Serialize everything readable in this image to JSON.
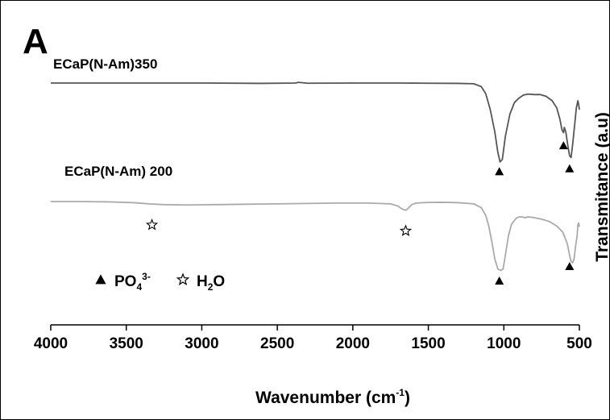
{
  "panel_label": "A",
  "chart_data": {
    "type": "line",
    "xlabel": "Wavenumber (cm",
    "xlabel_sup": "-1",
    "xlabel_suffix": ")",
    "ylabel": "Transmitance (a.u)",
    "xlim": [
      4000,
      500
    ],
    "x_reversed": true,
    "xticks": [
      4000,
      3500,
      3000,
      2500,
      2000,
      1500,
      1000,
      500
    ],
    "xtick_labels": [
      "4000",
      "3500",
      "3000",
      "2500",
      "2000",
      "1500",
      "1000",
      "500"
    ],
    "grid": false,
    "legend_position": "bottom-left",
    "colors": {
      "series_350": "#555555",
      "series_200": "#aaaaaa",
      "markers": "#000000"
    },
    "series": [
      {
        "name": "ECaP(N-Am)350",
        "x": [
          4000,
          3500,
          3000,
          2600,
          2380,
          2360,
          2300,
          2000,
          1700,
          1500,
          1300,
          1200,
          1150,
          1120,
          1090,
          1060,
          1040,
          1025,
          1010,
          990,
          960,
          930,
          900,
          870,
          840,
          800,
          760,
          720,
          680,
          650,
          630,
          615,
          605,
          600,
          590,
          575,
          565,
          555,
          545,
          530,
          520,
          510,
          505,
          500
        ],
        "y": [
          0.0,
          0.0,
          0.0,
          0.004,
          0.0,
          -0.008,
          0.002,
          0.0,
          0.0,
          0.002,
          0.004,
          0.008,
          0.04,
          0.12,
          0.3,
          0.55,
          0.78,
          0.89,
          0.86,
          0.6,
          0.35,
          0.22,
          0.17,
          0.135,
          0.125,
          0.13,
          0.13,
          0.15,
          0.2,
          0.28,
          0.4,
          0.53,
          0.56,
          0.5,
          0.55,
          0.72,
          0.82,
          0.84,
          0.7,
          0.45,
          0.28,
          0.2,
          0.24,
          0.3
        ]
      },
      {
        "name": "ECaP(N-Am) 200",
        "x": [
          4000,
          3800,
          3600,
          3450,
          3350,
          3250,
          3100,
          2900,
          2700,
          2500,
          2300,
          2100,
          1900,
          1750,
          1700,
          1680,
          1660,
          1645,
          1630,
          1610,
          1580,
          1500,
          1400,
          1300,
          1200,
          1150,
          1120,
          1100,
          1080,
          1060,
          1040,
          1020,
          1005,
          990,
          970,
          950,
          920,
          900,
          880,
          860,
          840,
          800,
          750,
          700,
          650,
          610,
          580,
          565,
          555,
          545,
          535,
          525,
          515,
          510,
          505,
          500
        ],
        "y": [
          0.0,
          0.0,
          0.005,
          0.015,
          0.03,
          0.04,
          0.045,
          0.04,
          0.035,
          0.03,
          0.025,
          0.02,
          0.02,
          0.03,
          0.06,
          0.09,
          0.11,
          0.11,
          0.08,
          0.04,
          0.02,
          0.012,
          0.01,
          0.015,
          0.03,
          0.08,
          0.18,
          0.32,
          0.52,
          0.75,
          0.88,
          0.9,
          0.88,
          0.7,
          0.45,
          0.3,
          0.22,
          0.2,
          0.2,
          0.21,
          0.2,
          0.21,
          0.23,
          0.26,
          0.32,
          0.4,
          0.55,
          0.7,
          0.78,
          0.8,
          0.75,
          0.58,
          0.45,
          0.3,
          0.28,
          0.33
        ]
      }
    ],
    "markers": [
      {
        "series": "ECaP(N-Am)350",
        "type": "triangle",
        "x": 1030
      },
      {
        "series": "ECaP(N-Am)350",
        "type": "triangle",
        "x": 605
      },
      {
        "series": "ECaP(N-Am)350",
        "type": "triangle",
        "x": 565
      },
      {
        "series": "ECaP(N-Am) 200",
        "type": "star",
        "x": 3330
      },
      {
        "series": "ECaP(N-Am) 200",
        "type": "star",
        "x": 1650
      },
      {
        "series": "ECaP(N-Am) 200",
        "type": "triangle",
        "x": 1030
      },
      {
        "series": "ECaP(N-Am) 200",
        "type": "triangle",
        "x": 565
      }
    ],
    "legend": [
      {
        "marker": "triangle",
        "label": "PO",
        "sub": "4",
        "sup": "3-",
        "label_suffix": ""
      },
      {
        "marker": "star",
        "label": "H",
        "sub": "2",
        "sup": "",
        "label_suffix": "O"
      }
    ]
  }
}
